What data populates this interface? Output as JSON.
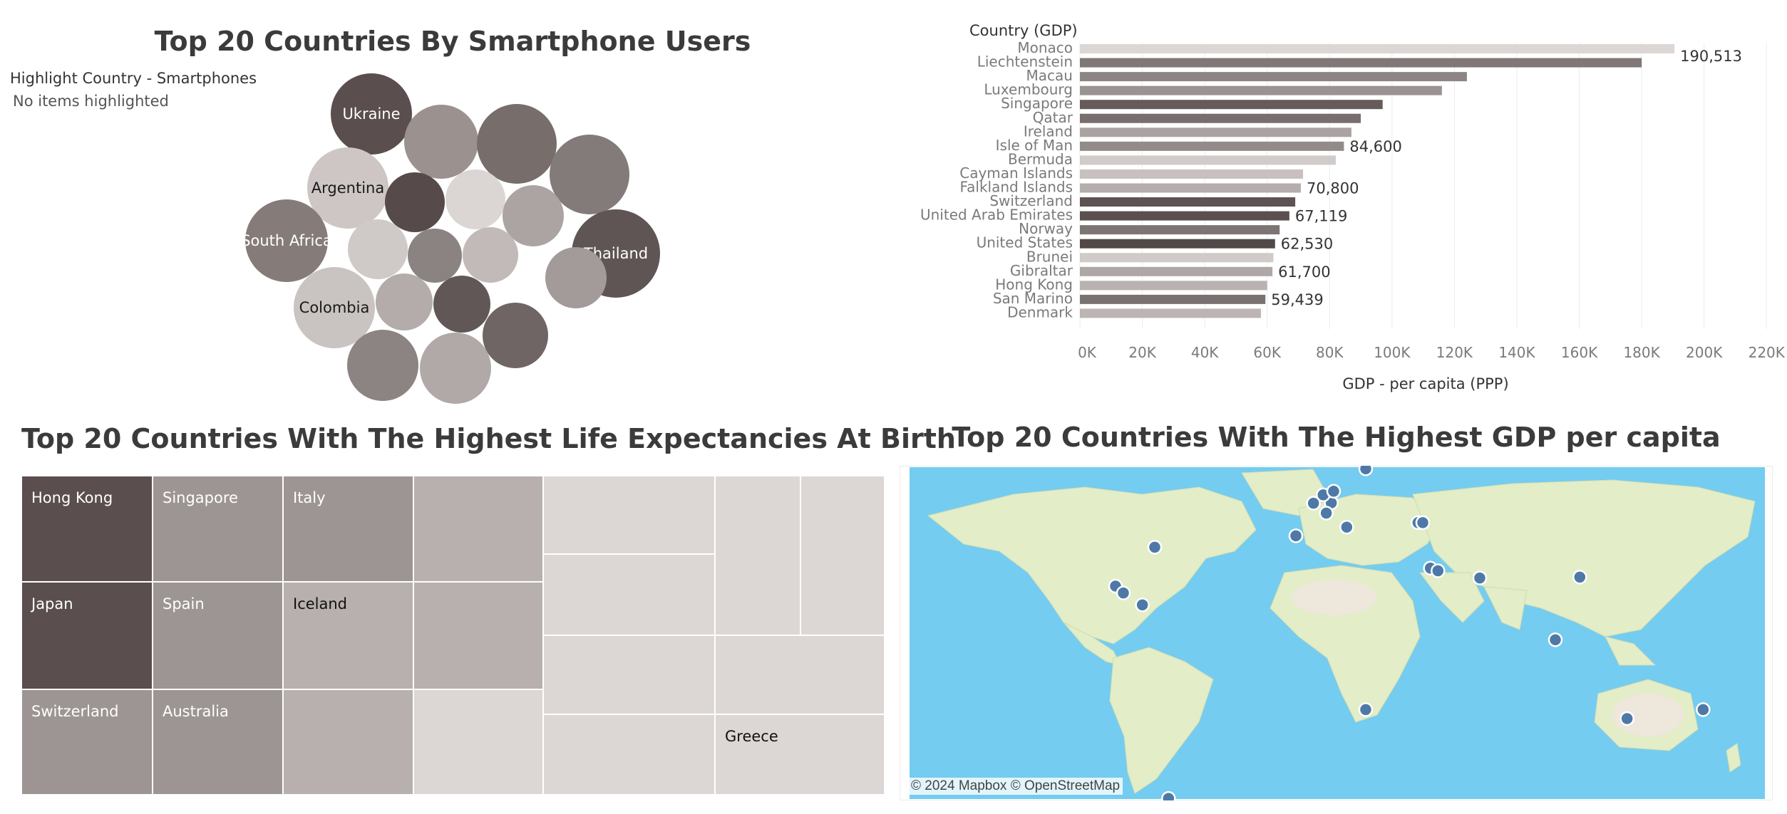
{
  "chart_data": [
    {
      "type": "bubble",
      "title": "Top 20 Countries By Smartphone Users",
      "highlight": {
        "label": "Highlight Country - Smartphones",
        "value": "No items highlighted"
      },
      "bubbles": [
        {
          "label": "Ukraine",
          "color": "#5a4f4e"
        },
        {
          "label": "",
          "color": "#9b9290"
        },
        {
          "label": "",
          "color": "#776d6b"
        },
        {
          "label": "",
          "color": "#837b79"
        },
        {
          "label": "Argentina",
          "color": "#cdc6c4"
        },
        {
          "label": "",
          "color": "#564b4a"
        },
        {
          "label": "",
          "color": "#dbd6d4"
        },
        {
          "label": "",
          "color": "#aba4a2"
        },
        {
          "label": "Thailand",
          "color": "#5e5554"
        },
        {
          "label": "South Africa",
          "color": "#857c7a"
        },
        {
          "label": "",
          "color": "#cfc9c7"
        },
        {
          "label": "",
          "color": "#8b8381"
        },
        {
          "label": "",
          "color": "#c1bab8"
        },
        {
          "label": "",
          "color": "#a39b99"
        },
        {
          "label": "Colombia",
          "color": "#c9c3c1"
        },
        {
          "label": "",
          "color": "#b3acaa"
        },
        {
          "label": "",
          "color": "#615756"
        },
        {
          "label": "",
          "color": "#6f6564"
        },
        {
          "label": "",
          "color": "#8c8482"
        },
        {
          "label": "",
          "color": "#b0a9a7"
        }
      ]
    },
    {
      "type": "bar",
      "title": "",
      "category_header": "Country (GDP)",
      "xlabel": "GDP - per capita (PPP)",
      "xlim": [
        0,
        220000
      ],
      "ticks": [
        "0K",
        "20K",
        "40K",
        "60K",
        "80K",
        "100K",
        "120K",
        "140K",
        "160K",
        "180K",
        "200K",
        "220K"
      ],
      "categories": [
        "Monaco",
        "Liechtenstein",
        "Macau",
        "Luxembourg",
        "Singapore",
        "Qatar",
        "Ireland",
        "Isle of Man",
        "Bermuda",
        "Cayman Islands",
        "Falkland Islands",
        "Switzerland",
        "United Arab Emirates",
        "Norway",
        "United States",
        "Brunei",
        "Gibraltar",
        "Hong Kong",
        "San Marino",
        "Denmark"
      ],
      "values": [
        190513,
        180000,
        124000,
        116000,
        97000,
        90000,
        87000,
        84600,
        82000,
        71500,
        70800,
        69000,
        67119,
        64000,
        62530,
        62000,
        61700,
        60000,
        59439,
        58000
      ],
      "data_labels": [
        "190,513",
        "",
        "",
        "",
        "",
        "",
        "",
        "84,600",
        "",
        "",
        "70,800",
        "",
        "67,119",
        "",
        "62,530",
        "",
        "61,700",
        "",
        "59,439",
        ""
      ],
      "colors": [
        "#dcd7d5",
        "#807876",
        "#8d8583",
        "#9b9391",
        "#655b5a",
        "#786e6d",
        "#aaa3a1",
        "#938b89",
        "#d1cbc9",
        "#c7c0be",
        "#b5aeac",
        "#5d5352",
        "#5a5050",
        "#7d7573",
        "#524847",
        "#d0cac8",
        "#aea7a5",
        "#b9b2b0",
        "#7a7271",
        "#bcb5b3"
      ]
    },
    {
      "type": "treemap",
      "title": "Top 20 Countries With The Highest Life Expectancies At Birth",
      "cells": [
        {
          "label": "Hong Kong",
          "color": "#5a4f4e",
          "text": "#ffffff"
        },
        {
          "label": "Japan",
          "color": "#5a4f4e",
          "text": "#ffffff"
        },
        {
          "label": "Switzerland",
          "color": "#9d9593",
          "text": "#ffffff"
        },
        {
          "label": "Singapore",
          "color": "#9d9593",
          "text": "#ffffff"
        },
        {
          "label": "Spain",
          "color": "#9d9593",
          "text": "#ffffff"
        },
        {
          "label": "Australia",
          "color": "#9d9593",
          "text": "#ffffff"
        },
        {
          "label": "Italy",
          "color": "#9d9593",
          "text": "#ffffff"
        },
        {
          "label": "Iceland",
          "color": "#b8b0ae",
          "text": "#111111"
        },
        {
          "label": "",
          "color": "#b8b0ae",
          "text": "#111111"
        },
        {
          "label": "",
          "color": "#b8b0ae",
          "text": "#111111"
        },
        {
          "label": "",
          "color": "#b8b0ae",
          "text": "#111111"
        },
        {
          "label": "",
          "color": "#dcd7d5",
          "text": "#111111"
        },
        {
          "label": "",
          "color": "#dcd7d5",
          "text": "#111111"
        },
        {
          "label": "",
          "color": "#dcd7d5",
          "text": "#111111"
        },
        {
          "label": "",
          "color": "#dcd7d5",
          "text": "#111111"
        },
        {
          "label": "",
          "color": "#dcd7d5",
          "text": "#111111"
        },
        {
          "label": "",
          "color": "#dcd7d5",
          "text": "#111111"
        },
        {
          "label": "",
          "color": "#dcd7d5",
          "text": "#111111"
        },
        {
          "label": "",
          "color": "#dcd7d5",
          "text": "#111111"
        },
        {
          "label": "Greece",
          "color": "#dcd7d5",
          "text": "#111111"
        }
      ]
    },
    {
      "type": "map",
      "title": "Top 20 Countries With The Highest GDP per capita",
      "attribution": "© 2024 Mapbox © OpenStreetMap",
      "point_color": "#4e79a7",
      "points": [
        {
          "lon": 9.5,
          "lat": 47.1
        },
        {
          "lon": 7.4,
          "lat": 43.7
        },
        {
          "lon": 6.1,
          "lat": 49.8
        },
        {
          "lon": 10.5,
          "lat": 51.0
        },
        {
          "lon": 24.0,
          "lat": 58.5
        },
        {
          "lon": 16.0,
          "lat": 39.0
        },
        {
          "lon": 2.0,
          "lat": 47.0
        },
        {
          "lon": -5.4,
          "lat": 36.1
        },
        {
          "lon": 51.2,
          "lat": 25.3
        },
        {
          "lon": 54.4,
          "lat": 24.4
        },
        {
          "lon": 72.0,
          "lat": 22.0
        },
        {
          "lon": 114.1,
          "lat": 22.3
        },
        {
          "lon": 103.8,
          "lat": 1.35
        },
        {
          "lon": -64.8,
          "lat": 32.3
        },
        {
          "lon": -81.3,
          "lat": 19.3
        },
        {
          "lon": -78.0,
          "lat": 17.0
        },
        {
          "lon": -70.0,
          "lat": 13.0
        },
        {
          "lon": -59.0,
          "lat": -51.7
        },
        {
          "lon": 24.0,
          "lat": -22.0
        },
        {
          "lon": 134.0,
          "lat": -25.0
        },
        {
          "lon": 166.0,
          "lat": -22.0
        },
        {
          "lon": 46.0,
          "lat": 40.5
        },
        {
          "lon": 48.0,
          "lat": 40.5
        }
      ]
    }
  ]
}
